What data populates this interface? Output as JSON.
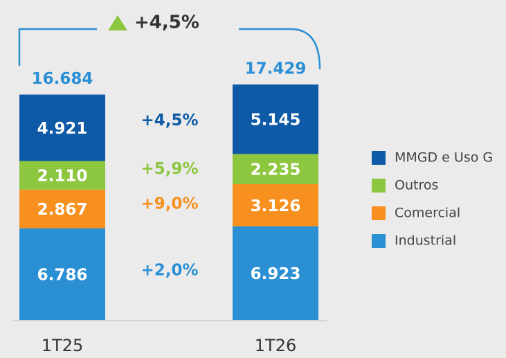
{
  "chart_data": {
    "type": "stacked_bar",
    "annotation": "+4,5%",
    "categories": [
      "1T25",
      "1T26"
    ],
    "series": [
      {
        "name": "Industrial",
        "color": "#2b8fd4",
        "values": [
          6786,
          6923
        ],
        "value_labels": [
          "6.786",
          "6.923"
        ],
        "growth": "+2,0%"
      },
      {
        "name": "Comercial",
        "color": "#f7901e",
        "values": [
          2867,
          3126
        ],
        "value_labels": [
          "2.867",
          "3.126"
        ],
        "growth": "+9,0%"
      },
      {
        "name": "Outros",
        "color": "#8dc63f",
        "values": [
          2110,
          2235
        ],
        "value_labels": [
          "2.110",
          "2.235"
        ],
        "growth": "+5,9%"
      },
      {
        "name": "MMGD e Uso G",
        "color": "#0e5aa7",
        "values": [
          4921,
          5145
        ],
        "value_labels": [
          "4.921",
          "5.145"
        ],
        "growth": "+4,5%"
      }
    ],
    "totals": {
      "values": [
        16684,
        17429
      ],
      "value_labels": [
        "16.684",
        "17.429"
      ],
      "color": "#2b8fd4"
    }
  }
}
